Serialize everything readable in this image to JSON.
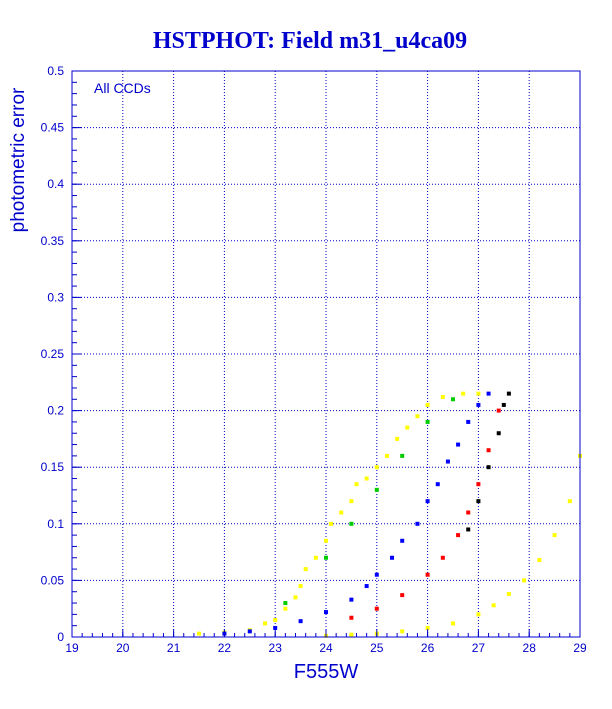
{
  "colors": {
    "axis": "#0000cc",
    "grid": "#0000cc",
    "title": "#0000cc",
    "text": "#0000cc",
    "annotation": "#0000cc",
    "series_yellow": "#ffff00",
    "series_blue": "#0000ff",
    "series_red": "#ff0000",
    "series_black": "#000000",
    "series_green": "#00cc00"
  },
  "chart_data": {
    "type": "scatter",
    "title": "HSTPHOT: Field m31_u4ca09",
    "xlabel": "F555W",
    "ylabel": "photometric error",
    "xlim": [
      19,
      29
    ],
    "ylim": [
      0,
      0.5
    ],
    "grid": true,
    "annotation": "All CCDs",
    "x_ticks": [
      "19",
      "20",
      "21",
      "22",
      "23",
      "24",
      "25",
      "26",
      "27",
      "28",
      "29"
    ],
    "y_ticks": [
      "0",
      "0.05",
      "0.1",
      "0.15",
      "0.2",
      "0.25",
      "0.3",
      "0.35",
      "0.4",
      "0.45",
      "0.5"
    ],
    "series": [
      {
        "color": "yellow",
        "points": [
          [
            21.5,
            0.003
          ],
          [
            22.0,
            0.004
          ],
          [
            22.5,
            0.006
          ],
          [
            22.8,
            0.012
          ],
          [
            23.0,
            0.015
          ],
          [
            23.2,
            0.025
          ],
          [
            23.4,
            0.035
          ],
          [
            23.5,
            0.045
          ],
          [
            23.6,
            0.06
          ],
          [
            23.8,
            0.07
          ],
          [
            24.0,
            0.085
          ],
          [
            24.1,
            0.1
          ],
          [
            24.3,
            0.11
          ],
          [
            24.5,
            0.12
          ],
          [
            24.6,
            0.135
          ],
          [
            24.8,
            0.14
          ],
          [
            25.0,
            0.15
          ],
          [
            25.2,
            0.16
          ],
          [
            25.4,
            0.175
          ],
          [
            25.6,
            0.185
          ],
          [
            25.8,
            0.195
          ],
          [
            26.0,
            0.205
          ],
          [
            26.3,
            0.212
          ],
          [
            26.7,
            0.215
          ],
          [
            27.0,
            0.215
          ]
        ]
      },
      {
        "color": "yellow",
        "points": [
          [
            24.0,
            0.001
          ],
          [
            24.5,
            0.002
          ],
          [
            25.0,
            0.003
          ],
          [
            25.5,
            0.005
          ],
          [
            26.0,
            0.008
          ],
          [
            26.5,
            0.012
          ],
          [
            27.0,
            0.02
          ],
          [
            27.3,
            0.028
          ],
          [
            27.6,
            0.038
          ],
          [
            27.9,
            0.05
          ],
          [
            28.2,
            0.068
          ],
          [
            28.5,
            0.09
          ],
          [
            28.8,
            0.12
          ],
          [
            29.0,
            0.16
          ]
        ]
      },
      {
        "color": "blue",
        "points": [
          [
            22.0,
            0.003
          ],
          [
            22.5,
            0.005
          ],
          [
            23.0,
            0.008
          ],
          [
            23.5,
            0.014
          ],
          [
            24.0,
            0.022
          ],
          [
            24.5,
            0.033
          ],
          [
            24.8,
            0.045
          ],
          [
            25.0,
            0.055
          ],
          [
            25.3,
            0.07
          ],
          [
            25.5,
            0.085
          ],
          [
            25.8,
            0.1
          ],
          [
            26.0,
            0.12
          ],
          [
            26.2,
            0.135
          ],
          [
            26.4,
            0.155
          ],
          [
            26.6,
            0.17
          ],
          [
            26.8,
            0.19
          ],
          [
            27.0,
            0.205
          ],
          [
            27.2,
            0.215
          ]
        ]
      },
      {
        "color": "red",
        "points": [
          [
            24.5,
            0.017
          ],
          [
            25.0,
            0.025
          ],
          [
            25.5,
            0.037
          ],
          [
            26.0,
            0.055
          ],
          [
            26.3,
            0.07
          ],
          [
            26.6,
            0.09
          ],
          [
            26.8,
            0.11
          ],
          [
            27.0,
            0.135
          ],
          [
            27.2,
            0.165
          ],
          [
            27.4,
            0.2
          ]
        ]
      },
      {
        "color": "black",
        "points": [
          [
            26.8,
            0.095
          ],
          [
            27.0,
            0.12
          ],
          [
            27.2,
            0.15
          ],
          [
            27.4,
            0.18
          ],
          [
            27.5,
            0.205
          ],
          [
            27.6,
            0.215
          ]
        ]
      },
      {
        "color": "green",
        "points": [
          [
            23.2,
            0.03
          ],
          [
            24.0,
            0.07
          ],
          [
            24.5,
            0.1
          ],
          [
            25.0,
            0.13
          ],
          [
            25.5,
            0.16
          ],
          [
            26.0,
            0.19
          ],
          [
            26.5,
            0.21
          ]
        ]
      }
    ]
  }
}
